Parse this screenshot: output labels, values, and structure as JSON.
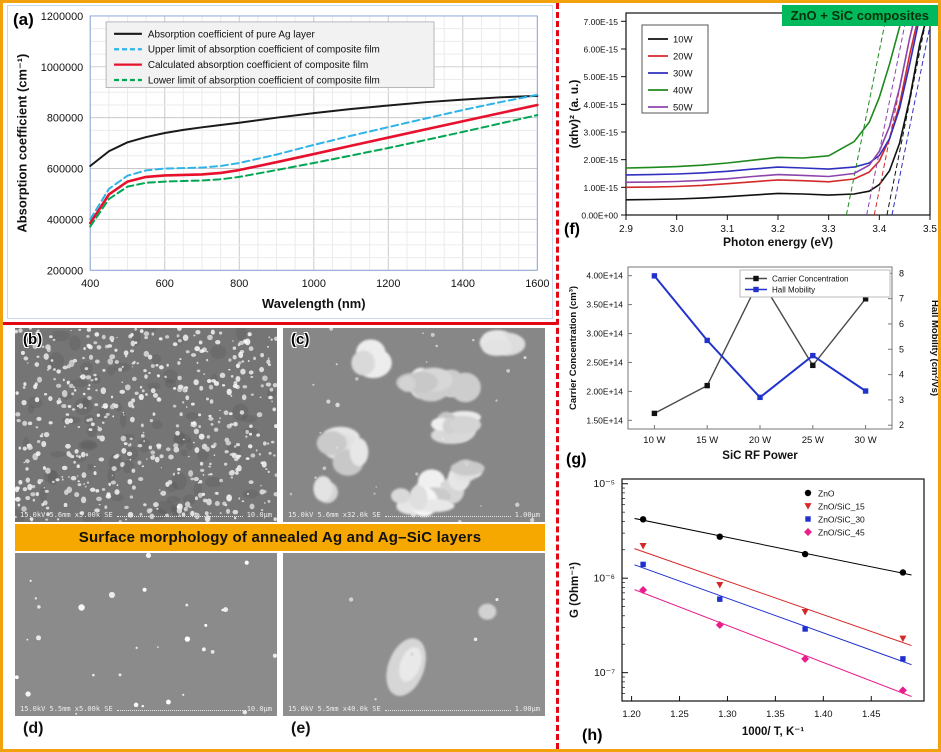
{
  "labels": {
    "a": "(a)",
    "b": "(b)",
    "c": "(c)",
    "d": "(d)",
    "e": "(e)",
    "f": "(f)",
    "g": "(g)",
    "h": "(h)"
  },
  "sem": {
    "banner_text": "Surface morphology of annealed Ag and Ag–SiC layers",
    "panels": [
      {
        "id": "b",
        "caption": "15.0kV 5.6mm x5.00k SE",
        "scale_label": "10.0μm",
        "style": "many-small",
        "bg": "#757575"
      },
      {
        "id": "c",
        "caption": "15.0kV 5.6mm x32.0k SE",
        "scale_label": "1.00μm",
        "style": "large-blobs",
        "bg": "#878787"
      },
      {
        "id": "d",
        "caption": "15.0kV 5.5mm x5.00k SE",
        "scale_label": "10.0μm",
        "style": "sparse-small",
        "bg": "#8b8b8b"
      },
      {
        "id": "e",
        "caption": "15.0kV 5.5mm x40.0k SE",
        "scale_label": "1.00μm",
        "style": "one-large",
        "bg": "#8f8f8f"
      }
    ]
  },
  "colors": {
    "frame_border": "#f2a20c",
    "divider": "#e30613",
    "banner": "#f6a800",
    "title_green": "#00b95c"
  },
  "chart_data": [
    {
      "panel": "a",
      "type": "line",
      "title": "",
      "xlabel": "Wavelength (nm)",
      "ylabel": "Absorption coefficient (cm⁻¹)",
      "xlim": [
        400,
        1600
      ],
      "ylim": [
        200000,
        1200000
      ],
      "xticks": [
        400,
        600,
        800,
        1000,
        1200,
        1400,
        1600
      ],
      "yticks": [
        200000,
        400000,
        600000,
        800000,
        1000000,
        1200000
      ],
      "grid": true,
      "legend_position": "top-left-inside",
      "x": [
        400,
        450,
        500,
        550,
        600,
        650,
        700,
        750,
        800,
        900,
        1000,
        1100,
        1200,
        1300,
        1400,
        1500,
        1600
      ],
      "series": [
        {
          "name": "Absorption coefficient of pure Ag layer",
          "color": "#1a1a1a",
          "dash": "solid",
          "width": 2,
          "y": [
            610000,
            668000,
            703000,
            724000,
            740000,
            752000,
            762000,
            771000,
            780000,
            800000,
            818000,
            834000,
            848000,
            861000,
            871000,
            880000,
            886000
          ]
        },
        {
          "name": "Upper limit of absorption coefficient of composite film",
          "color": "#2eb3e8",
          "dash": "dashed",
          "width": 2,
          "y": [
            400000,
            520000,
            572000,
            593000,
            600000,
            602000,
            604000,
            610000,
            622000,
            655000,
            693000,
            729000,
            763000,
            797000,
            830000,
            861000,
            890000
          ]
        },
        {
          "name": "Calculated absorption coefficient of composite film",
          "color": "#e8112d",
          "dash": "solid",
          "width": 2.6,
          "y": [
            385000,
            498000,
            549000,
            567000,
            573000,
            575000,
            577000,
            583000,
            594000,
            625000,
            657000,
            690000,
            722000,
            754000,
            786000,
            818000,
            850000
          ]
        },
        {
          "name": "Lower limit of absorption coefficient of composite film",
          "color": "#00a651",
          "dash": "dashed",
          "width": 2,
          "y": [
            372000,
            480000,
            529000,
            544000,
            549000,
            551000,
            553000,
            558000,
            567000,
            594000,
            622000,
            651000,
            681000,
            712000,
            744000,
            777000,
            810000
          ]
        }
      ]
    },
    {
      "panel": "f",
      "type": "line",
      "title": "ZnO + SiC composites",
      "xlabel": "Photon energy (eV)",
      "ylabel": "(αhv)² (a. u.)",
      "xlim": [
        2.9,
        3.5
      ],
      "ylim_unit": [
        0,
        7.3
      ],
      "xticks": [
        2.9,
        3.0,
        3.1,
        3.2,
        3.3,
        3.4,
        3.5
      ],
      "ytick_labels": [
        "0.00E+00",
        "1.00E-15",
        "2.00E-15",
        "3.00E-15",
        "4.00E-15",
        "5.00E-15",
        "6.00E-15",
        "7.00E-15"
      ],
      "ytick_values_unit": [
        0,
        1,
        2,
        3,
        4,
        5,
        6,
        7
      ],
      "y_unit": 1e-15,
      "fit_dx": 0.08,
      "legend_position": "left-inside",
      "x": [
        2.9,
        2.95,
        3.0,
        3.05,
        3.1,
        3.15,
        3.2,
        3.25,
        3.3,
        3.35,
        3.38,
        3.4,
        3.42,
        3.44,
        3.46,
        3.48,
        3.5
      ],
      "series": [
        {
          "name": "10W",
          "color": "#111111",
          "fit_x0": 3.415,
          "y": [
            0.55,
            0.56,
            0.58,
            0.61,
            0.66,
            0.72,
            0.78,
            0.76,
            0.72,
            0.76,
            0.86,
            1.1,
            1.6,
            2.6,
            4.2,
            6.2,
            7.6
          ]
        },
        {
          "name": "20W",
          "color": "#d42a2a",
          "fit_x0": 3.39,
          "y": [
            1.0,
            1.01,
            1.03,
            1.07,
            1.13,
            1.2,
            1.27,
            1.24,
            1.2,
            1.3,
            1.55,
            1.95,
            2.75,
            4.0,
            5.8,
            7.4,
            8.6
          ]
        },
        {
          "name": "30W",
          "color": "#3030c0",
          "fit_x0": 3.425,
          "y": [
            1.45,
            1.46,
            1.48,
            1.52,
            1.58,
            1.66,
            1.73,
            1.7,
            1.66,
            1.73,
            1.88,
            2.15,
            2.75,
            3.85,
            5.45,
            7.2,
            8.6
          ]
        },
        {
          "name": "40W",
          "color": "#1e8a1e",
          "fit_x0": 3.335,
          "y": [
            1.7,
            1.72,
            1.75,
            1.8,
            1.88,
            1.98,
            2.08,
            2.06,
            2.14,
            2.65,
            3.35,
            4.25,
            5.45,
            6.8,
            7.9,
            8.7,
            9.3
          ]
        },
        {
          "name": "50W",
          "color": "#8e44ad",
          "fit_x0": 3.375,
          "y": [
            1.18,
            1.19,
            1.21,
            1.25,
            1.31,
            1.39,
            1.46,
            1.43,
            1.39,
            1.5,
            1.8,
            2.3,
            3.2,
            4.6,
            6.4,
            7.9,
            9.0
          ]
        }
      ]
    },
    {
      "panel": "g",
      "type": "dual-line",
      "title": "",
      "xlabel": "SiC RF Power",
      "ylabel_left": "Carrier Concentration (cm³)",
      "ylabel_right": "Hall Mobility (cm²/Vs)",
      "categories": [
        "10 W",
        "15 W",
        "20 W",
        "25 W",
        "30 W"
      ],
      "x": [
        10,
        15,
        20,
        25,
        30
      ],
      "ytick_left_labels": [
        "1.50E+14",
        "2.00E+14",
        "2.50E+14",
        "3.00E+14",
        "3.50E+14",
        "4.00E+14"
      ],
      "ytick_left_values": [
        150000000000000.0,
        200000000000000.0,
        250000000000000.0,
        300000000000000.0,
        350000000000000.0,
        400000000000000.0
      ],
      "ylim_left": [
        135000000000000.0,
        415000000000000.0
      ],
      "ytick_right": [
        2,
        3,
        4,
        5,
        6,
        7,
        8
      ],
      "ylim_right": [
        1.85,
        8.25
      ],
      "legend_position": "top-right-inside",
      "series": [
        {
          "name": "Carrier Concentration",
          "axis": "left",
          "color": "#4a4a4a",
          "marker_color": "#111111",
          "marker": "square",
          "y": [
            162000000000000.0,
            210000000000000.0,
            395000000000000.0,
            245000000000000.0,
            360000000000000.0
          ]
        },
        {
          "name": "Hall Mobility",
          "axis": "right",
          "color": "#2233cc",
          "marker_color": "#2233cc",
          "marker": "square",
          "y": [
            7.9,
            5.35,
            3.1,
            4.75,
            3.35
          ]
        }
      ]
    },
    {
      "panel": "h",
      "type": "scatter-log",
      "title": "",
      "xlabel": "1000/ T, K⁻¹",
      "ylabel": "G (Ohm⁻¹)",
      "xlim": [
        1.19,
        1.505
      ],
      "xticks": [
        1.2,
        1.25,
        1.3,
        1.35,
        1.4,
        1.45
      ],
      "ytick_labels": [
        "10⁻⁵",
        "10⁻⁶",
        "10⁻⁷"
      ],
      "ytick_values": [
        1e-05,
        1e-06,
        1e-07
      ],
      "ylim_log": [
        -7.3,
        -4.95
      ],
      "legend_position": "top-right-inside",
      "x": [
        1.212,
        1.292,
        1.381,
        1.483
      ],
      "series": [
        {
          "name": "ZnO",
          "color": "#000000",
          "marker": "circle",
          "y": [
            4.2e-06,
            2.75e-06,
            1.8e-06,
            1.15e-06
          ]
        },
        {
          "name": "ZnO/SiC_15",
          "color": "#d62728",
          "marker": "triangle-down",
          "y": [
            2.2e-06,
            8.5e-07,
            4.4e-07,
            2.3e-07
          ]
        },
        {
          "name": "ZnO/SiC_30",
          "color": "#2030d0",
          "marker": "square",
          "y": [
            1.4e-06,
            6e-07,
            2.9e-07,
            1.4e-07
          ]
        },
        {
          "name": "ZnO/SiC_45",
          "color": "#e91e8c",
          "marker": "diamond",
          "y": [
            7.5e-07,
            3.2e-07,
            1.4e-07,
            6.5e-08
          ]
        }
      ]
    }
  ]
}
